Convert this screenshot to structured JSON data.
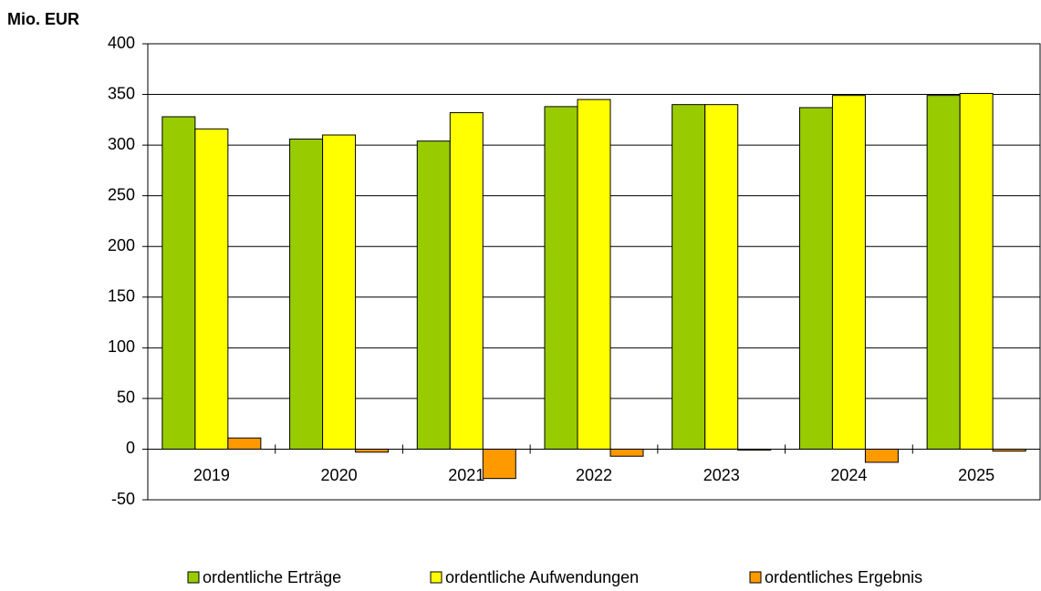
{
  "chart_data": {
    "type": "bar",
    "y_axis_label": "Mio. EUR",
    "categories": [
      "2019",
      "2020",
      "2021",
      "2022",
      "2023",
      "2024",
      "2025"
    ],
    "series": [
      {
        "name": "ordentliche Erträge",
        "color": "#99cc00",
        "values": [
          328,
          306,
          304,
          338,
          340,
          337,
          349
        ]
      },
      {
        "name": "ordentliche Aufwendungen",
        "color": "#ffff00",
        "values": [
          316,
          310,
          332,
          345,
          340,
          349,
          351
        ]
      },
      {
        "name": "ordentliches Ergebnis",
        "color": "#ff9900",
        "values": [
          11,
          -3,
          -29,
          -7,
          -1,
          -13,
          -2
        ]
      }
    ],
    "ylim": [
      -50,
      400
    ],
    "yticks": [
      -50,
      0,
      50,
      100,
      150,
      200,
      250,
      300,
      350,
      400
    ],
    "grid": true
  }
}
